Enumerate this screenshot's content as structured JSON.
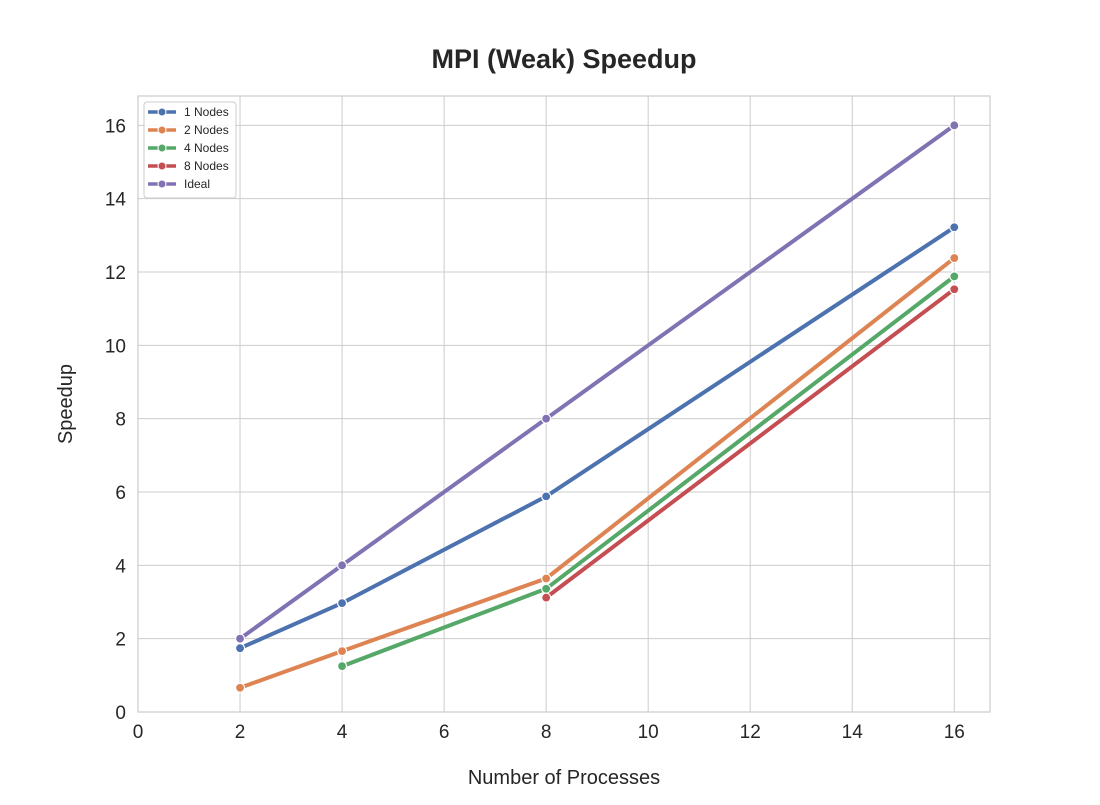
{
  "chart_data": {
    "type": "line",
    "title": "MPI (Weak) Speedup",
    "xlabel": "Number of Processes",
    "ylabel": "Speedup",
    "xlim": [
      0,
      16.7
    ],
    "ylim": [
      0,
      16.8
    ],
    "xticks": [
      0,
      2,
      4,
      6,
      8,
      10,
      12,
      14,
      16
    ],
    "yticks": [
      0,
      2,
      4,
      6,
      8,
      10,
      12,
      14,
      16
    ],
    "grid": true,
    "legend_position": "top-left",
    "series": [
      {
        "name": "1 Nodes",
        "color": "#4c72b0",
        "x": [
          2,
          4,
          8,
          16
        ],
        "y": [
          1.74,
          2.97,
          5.88,
          13.22
        ]
      },
      {
        "name": "2 Nodes",
        "color": "#dd8452",
        "x": [
          2,
          4,
          8,
          16
        ],
        "y": [
          0.66,
          1.66,
          3.64,
          12.38
        ]
      },
      {
        "name": "4 Nodes",
        "color": "#55a868",
        "x": [
          4,
          8,
          16
        ],
        "y": [
          1.25,
          3.36,
          11.88
        ]
      },
      {
        "name": "8 Nodes",
        "color": "#c44e52",
        "x": [
          8,
          16
        ],
        "y": [
          3.12,
          11.53
        ]
      },
      {
        "name": "Ideal",
        "color": "#8172b3",
        "x": [
          2,
          4,
          8,
          16
        ],
        "y": [
          2,
          4,
          8,
          16
        ]
      }
    ]
  }
}
